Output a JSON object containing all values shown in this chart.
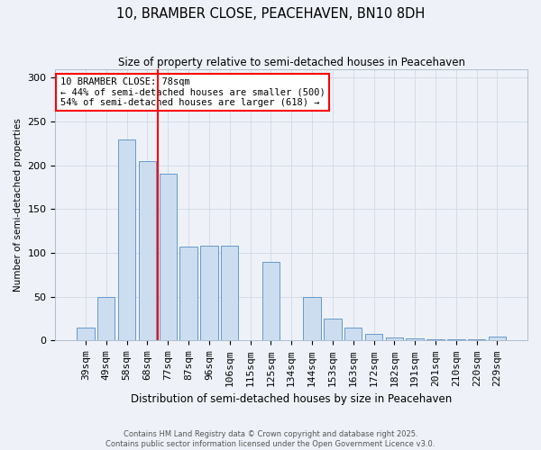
{
  "title": "10, BRAMBER CLOSE, PEACEHAVEN, BN10 8DH",
  "subtitle": "Size of property relative to semi-detached houses in Peacehaven",
  "xlabel": "Distribution of semi-detached houses by size in Peacehaven",
  "ylabel": "Number of semi-detached properties",
  "categories": [
    "39sqm",
    "49sqm",
    "58sqm",
    "68sqm",
    "77sqm",
    "87sqm",
    "96sqm",
    "106sqm",
    "115sqm",
    "125sqm",
    "134sqm",
    "144sqm",
    "153sqm",
    "163sqm",
    "172sqm",
    "182sqm",
    "191sqm",
    "201sqm",
    "210sqm",
    "220sqm",
    "229sqm"
  ],
  "values": [
    15,
    50,
    230,
    205,
    190,
    107,
    108,
    108,
    0,
    90,
    0,
    50,
    25,
    15,
    8,
    4,
    2,
    1,
    1,
    1,
    5
  ],
  "bar_color": "#ccddf0",
  "bar_edge_color": "#6699cc",
  "red_line_x": 3.5,
  "annotation_text_line1": "10 BRAMBER CLOSE: 78sqm",
  "annotation_text_line2": "← 44% of semi-detached houses are smaller (500)",
  "annotation_text_line3": "54% of semi-detached houses are larger (618) →",
  "ylim": [
    0,
    310
  ],
  "grid_color": "#d4dce8",
  "background_color": "#eef2f8",
  "footer1": "Contains HM Land Registry data © Crown copyright and database right 2025.",
  "footer2": "Contains public sector information licensed under the Open Government Licence v3.0."
}
